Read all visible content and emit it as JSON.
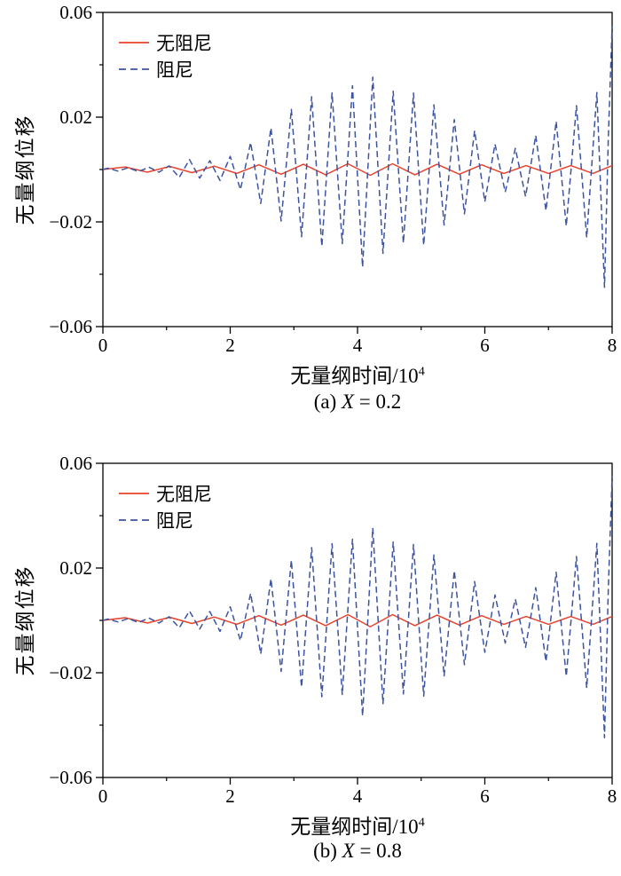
{
  "figure": {
    "background": "#ffffff",
    "axis_color": "#000000"
  },
  "chart_data": [
    {
      "type": "line",
      "caption": {
        "prefix": "(a) ",
        "var": "X",
        "suffix": " = 0.2"
      },
      "xlabel": {
        "base": "无量纲时间/10",
        "sup": "4"
      },
      "ylabel": "无量纲位移",
      "xlim": [
        0,
        8
      ],
      "ylim": [
        -0.06,
        0.06
      ],
      "xticks": [
        0,
        2,
        4,
        6,
        8
      ],
      "xtick_labels": [
        "0",
        "2",
        "4",
        "6",
        "8"
      ],
      "xticks_minor": [
        1,
        3,
        5,
        7
      ],
      "yticks": [
        0.06,
        0.02,
        -0.02,
        -0.06
      ],
      "ytick_labels": [
        "0.06",
        "0.02",
        "−0.02",
        "−0.06"
      ],
      "yticks_minor": [
        0.04,
        0,
        -0.04
      ],
      "grid": false,
      "legend_position": "top-left",
      "series": [
        {
          "name": "无阻尼",
          "color": "#e8432e",
          "style": "solid",
          "points": [
            [
              0,
              0
            ],
            [
              0.35,
              0.001
            ],
            [
              0.7,
              -0.001
            ],
            [
              1.05,
              0.0012
            ],
            [
              1.4,
              -0.0012
            ],
            [
              1.75,
              0.0013
            ],
            [
              2.1,
              -0.0015
            ],
            [
              2.45,
              0.0018
            ],
            [
              2.8,
              -0.0018
            ],
            [
              3.15,
              0.002
            ],
            [
              3.5,
              -0.002
            ],
            [
              3.85,
              0.0022
            ],
            [
              4.2,
              -0.0022
            ],
            [
              4.55,
              0.0022
            ],
            [
              4.9,
              -0.002
            ],
            [
              5.25,
              0.002
            ],
            [
              5.6,
              -0.0018
            ],
            [
              5.95,
              0.0018
            ],
            [
              6.3,
              -0.0015
            ],
            [
              6.65,
              0.0015
            ],
            [
              7,
              -0.0015
            ],
            [
              7.35,
              0.0015
            ],
            [
              7.7,
              -0.0015
            ],
            [
              8,
              0.0015
            ]
          ]
        },
        {
          "name": "阻尼",
          "color": "#3c53a0",
          "style": "dashed",
          "points": [
            [
              0,
              0
            ],
            [
              0.08,
              0.0005
            ],
            [
              0.24,
              -0.0006
            ],
            [
              0.4,
              0.0007
            ],
            [
              0.56,
              -0.0008
            ],
            [
              0.72,
              0.0009
            ],
            [
              0.88,
              -0.001
            ],
            [
              1.04,
              0.0014
            ],
            [
              1.2,
              -0.003
            ],
            [
              1.36,
              0.0038
            ],
            [
              1.52,
              -0.0033
            ],
            [
              1.68,
              0.0034
            ],
            [
              1.84,
              -0.0042
            ],
            [
              2,
              0.005
            ],
            [
              2.16,
              -0.0077
            ],
            [
              2.32,
              0.0103
            ],
            [
              2.48,
              -0.013
            ],
            [
              2.64,
              0.0159
            ],
            [
              2.8,
              -0.0197
            ],
            [
              2.96,
              0.023
            ],
            [
              3.12,
              -0.0257
            ],
            [
              3.28,
              0.0278
            ],
            [
              3.44,
              -0.0294
            ],
            [
              3.6,
              0.0293
            ],
            [
              3.76,
              -0.0283
            ],
            [
              3.92,
              0.032
            ],
            [
              4.08,
              -0.0373
            ],
            [
              4.24,
              0.0353
            ],
            [
              4.4,
              -0.032
            ],
            [
              4.56,
              0.0299
            ],
            [
              4.72,
              -0.0281
            ],
            [
              4.88,
              0.0292
            ],
            [
              5.04,
              -0.0289
            ],
            [
              5.2,
              0.0247
            ],
            [
              5.36,
              -0.0212
            ],
            [
              5.52,
              0.0191
            ],
            [
              5.68,
              -0.0169
            ],
            [
              5.84,
              0.0148
            ],
            [
              6,
              -0.0123
            ],
            [
              6.16,
              0.0097
            ],
            [
              6.32,
              -0.0086
            ],
            [
              6.48,
              0.0081
            ],
            [
              6.64,
              -0.0103
            ],
            [
              6.8,
              0.013
            ],
            [
              6.96,
              -0.0157
            ],
            [
              7.12,
              0.0184
            ],
            [
              7.28,
              -0.0216
            ],
            [
              7.44,
              0.0244
            ],
            [
              7.6,
              -0.026
            ],
            [
              7.76,
              0.0294
            ],
            [
              7.88,
              -0.045
            ],
            [
              7.94,
              0.012
            ],
            [
              8,
              0.055
            ]
          ]
        }
      ]
    },
    {
      "type": "line",
      "caption": {
        "prefix": "(b) ",
        "var": "X",
        "suffix": " = 0.8"
      },
      "xlabel": {
        "base": "无量纲时间/10",
        "sup": "4"
      },
      "ylabel": "无量纲位移",
      "xlim": [
        0,
        8
      ],
      "ylim": [
        -0.06,
        0.06
      ],
      "xticks": [
        0,
        2,
        4,
        6,
        8
      ],
      "xtick_labels": [
        "0",
        "2",
        "4",
        "6",
        "8"
      ],
      "xticks_minor": [
        1,
        3,
        5,
        7
      ],
      "yticks": [
        0.06,
        0.02,
        -0.02,
        -0.06
      ],
      "ytick_labels": [
        "0.06",
        "0.02",
        "−0.02",
        "−0.06"
      ],
      "yticks_minor": [
        0.04,
        0,
        -0.04
      ],
      "grid": false,
      "legend_position": "top-left",
      "series": [
        {
          "name": "无阻尼",
          "color": "#e8432e",
          "style": "solid",
          "points": [
            [
              0,
              0
            ],
            [
              0.35,
              0.001
            ],
            [
              0.7,
              -0.001
            ],
            [
              1.05,
              0.0012
            ],
            [
              1.4,
              -0.0012
            ],
            [
              1.75,
              0.0013
            ],
            [
              2.1,
              -0.0015
            ],
            [
              2.45,
              0.0018
            ],
            [
              2.8,
              -0.0018
            ],
            [
              3.15,
              0.002
            ],
            [
              3.5,
              -0.002
            ],
            [
              3.85,
              0.0022
            ],
            [
              4.2,
              -0.0024
            ],
            [
              4.55,
              0.0022
            ],
            [
              4.9,
              -0.002
            ],
            [
              5.25,
              0.002
            ],
            [
              5.6,
              -0.0018
            ],
            [
              5.95,
              0.0018
            ],
            [
              6.3,
              -0.0015
            ],
            [
              6.65,
              0.0015
            ],
            [
              7,
              -0.0015
            ],
            [
              7.35,
              0.0015
            ],
            [
              7.7,
              -0.0015
            ],
            [
              8,
              0.0015
            ]
          ]
        },
        {
          "name": "阻尼",
          "color": "#3c53a0",
          "style": "dashed",
          "points": [
            [
              0,
              0
            ],
            [
              0.08,
              0.0005
            ],
            [
              0.24,
              -0.0006
            ],
            [
              0.4,
              0.0007
            ],
            [
              0.56,
              -0.0008
            ],
            [
              0.72,
              0.0009
            ],
            [
              0.88,
              -0.001
            ],
            [
              1.04,
              0.0014
            ],
            [
              1.2,
              -0.0028
            ],
            [
              1.36,
              0.0036
            ],
            [
              1.52,
              -0.0033
            ],
            [
              1.68,
              0.0034
            ],
            [
              1.84,
              -0.0042
            ],
            [
              2,
              0.0052
            ],
            [
              2.16,
              -0.0077
            ],
            [
              2.32,
              0.0103
            ],
            [
              2.48,
              -0.0128
            ],
            [
              2.64,
              0.0159
            ],
            [
              2.8,
              -0.0195
            ],
            [
              2.96,
              0.023
            ],
            [
              3.12,
              -0.0255
            ],
            [
              3.28,
              0.0278
            ],
            [
              3.44,
              -0.0292
            ],
            [
              3.6,
              0.0293
            ],
            [
              3.76,
              -0.0283
            ],
            [
              3.92,
              0.031
            ],
            [
              4.08,
              -0.0365
            ],
            [
              4.24,
              0.0353
            ],
            [
              4.4,
              -0.0318
            ],
            [
              4.56,
              0.0299
            ],
            [
              4.72,
              -0.0281
            ],
            [
              4.88,
              0.029
            ],
            [
              5.04,
              -0.0289
            ],
            [
              5.2,
              0.025
            ],
            [
              5.36,
              -0.0212
            ],
            [
              5.52,
              0.019
            ],
            [
              5.68,
              -0.0169
            ],
            [
              5.84,
              0.0148
            ],
            [
              6,
              -0.0122
            ],
            [
              6.16,
              0.0097
            ],
            [
              6.32,
              -0.0086
            ],
            [
              6.48,
              0.0081
            ],
            [
              6.64,
              -0.0103
            ],
            [
              6.8,
              0.0125
            ],
            [
              6.96,
              -0.0157
            ],
            [
              7.12,
              0.0184
            ],
            [
              7.28,
              -0.0214
            ],
            [
              7.44,
              0.0244
            ],
            [
              7.6,
              -0.0258
            ],
            [
              7.76,
              0.0294
            ],
            [
              7.88,
              -0.0448
            ],
            [
              7.94,
              0.012
            ],
            [
              8,
              0.0552
            ]
          ]
        }
      ]
    }
  ]
}
